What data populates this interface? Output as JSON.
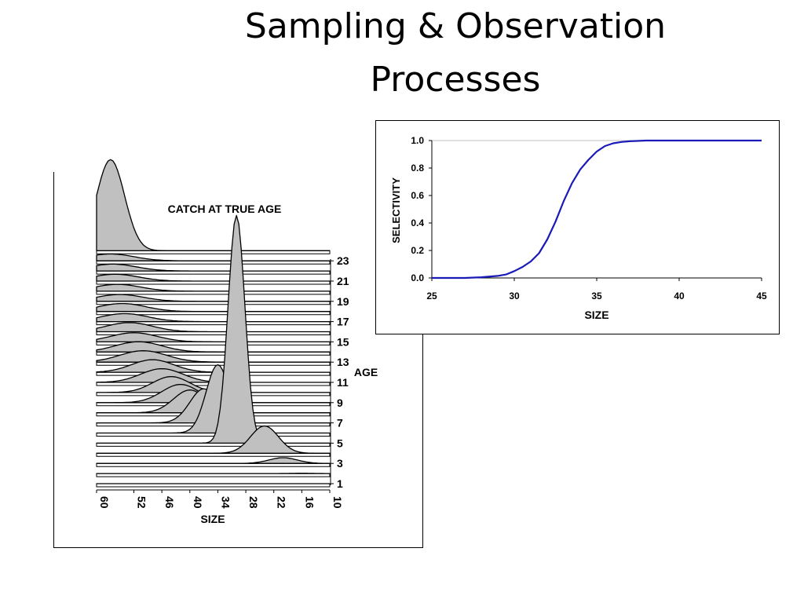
{
  "slide": {
    "title_line1": "Sampling & Observation",
    "title_line2": "Processes"
  },
  "colors": {
    "ridge_fill": "#c0c0c0",
    "ridge_stroke": "#000000",
    "selectivity_line": "#1a1ab8",
    "grid": "#c0c0c0"
  },
  "chart_data": [
    {
      "type": "area",
      "title": "CATCH AT TRUE AGE",
      "xlabel": "SIZE",
      "zlabel": "AGE",
      "x_ticks": [
        "60",
        "52",
        "46",
        "40",
        "34",
        "28",
        "22",
        "16",
        "10"
      ],
      "x_range": [
        60,
        10
      ],
      "age_ticks": [
        "1",
        "3",
        "5",
        "7",
        "9",
        "11",
        "13",
        "15",
        "17",
        "19",
        "21",
        "23"
      ],
      "ages": [
        1,
        2,
        3,
        4,
        5,
        6,
        7,
        8,
        9,
        10,
        11,
        12,
        13,
        14,
        15,
        16,
        17,
        18,
        19,
        20,
        21,
        22,
        23,
        24
      ],
      "mean_size": [
        12,
        16,
        20,
        24,
        30,
        34,
        37,
        40,
        42,
        44,
        46,
        48,
        50,
        51,
        52,
        53,
        54,
        54.5,
        55,
        55.5,
        56,
        56.5,
        57,
        57
      ],
      "peak_heights": [
        0,
        0.1,
        2.5,
        12,
        100,
        30,
        15,
        10,
        8,
        7,
        6,
        5.5,
        5,
        4.5,
        4,
        4,
        3.5,
        3.5,
        3,
        3,
        3,
        3,
        3,
        40
      ],
      "spread": [
        2,
        2.5,
        3,
        3,
        1.8,
        2.5,
        3,
        3.5,
        4,
        4,
        4.5,
        4.5,
        5,
        5,
        5,
        5,
        5,
        5,
        5,
        5,
        5,
        5,
        5,
        3
      ]
    },
    {
      "type": "line",
      "xlabel": "SIZE",
      "ylabel": "SELECTIVITY",
      "xlim": [
        25,
        45
      ],
      "ylim": [
        0,
        1
      ],
      "x_ticks": [
        "25",
        "30",
        "35",
        "40",
        "45"
      ],
      "y_ticks": [
        "0.0",
        "0.2",
        "0.4",
        "0.6",
        "0.8",
        "1.0"
      ],
      "grid": "horizontal-top",
      "series": [
        {
          "x": [
            25,
            26,
            27,
            28,
            29,
            29.5,
            30,
            30.5,
            31,
            31.5,
            32,
            32.5,
            33,
            33.5,
            34,
            34.5,
            35,
            35.5,
            36,
            36.5,
            37,
            38,
            39,
            40,
            41,
            42,
            43,
            44,
            45
          ],
          "values": [
            0,
            0,
            0,
            0.005,
            0.015,
            0.025,
            0.05,
            0.08,
            0.12,
            0.18,
            0.28,
            0.41,
            0.56,
            0.69,
            0.79,
            0.86,
            0.92,
            0.96,
            0.98,
            0.99,
            0.995,
            1,
            1,
            1,
            1,
            1,
            1,
            1,
            1
          ]
        }
      ]
    }
  ]
}
